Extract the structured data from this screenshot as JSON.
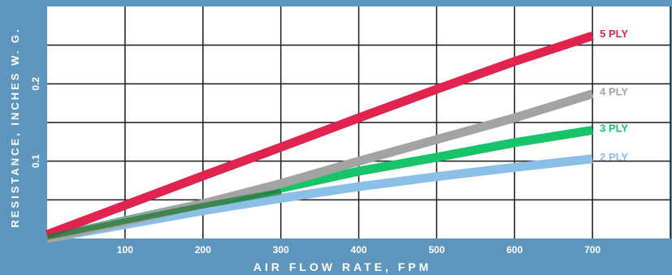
{
  "chart_data": {
    "type": "line",
    "title": "",
    "xlabel": "AIR FLOW RATE, FPM",
    "ylabel": "RESISTANCE, INCHES W. G.",
    "xlim": [
      0,
      800
    ],
    "ylim": [
      0,
      0.3
    ],
    "x_ticks": [
      100,
      200,
      300,
      400,
      500,
      600,
      700
    ],
    "x_tick_labels": [
      "100",
      "200",
      "300",
      "400",
      "500",
      "600",
      "700"
    ],
    "y_ticks": [
      0.1,
      0.2
    ],
    "y_tick_labels": [
      "0.1",
      "0.2"
    ],
    "grid": true,
    "x_grid_step": 100,
    "y_grid_step": 0.05,
    "legend": "inline labels at line ends (right)",
    "series": [
      {
        "name": "5 PLY",
        "color": "#e0234f",
        "x": [
          0,
          100,
          200,
          300,
          400,
          500,
          600,
          700
        ],
        "y": [
          0.005,
          0.043,
          0.081,
          0.118,
          0.156,
          0.193,
          0.229,
          0.262
        ]
      },
      {
        "name": "4 PLY",
        "color": "#a3a3a3",
        "x": [
          0,
          100,
          200,
          300,
          400,
          500,
          600,
          700
        ],
        "y": [
          0,
          0.022,
          0.045,
          0.071,
          0.1,
          0.128,
          0.156,
          0.187
        ]
      },
      {
        "name": "3 PLY",
        "color": "#17c46a",
        "x": [
          0,
          100,
          200,
          300,
          400,
          500,
          600,
          700
        ],
        "y": [
          0,
          0.023,
          0.045,
          0.065,
          0.087,
          0.105,
          0.124,
          0.14
        ]
      },
      {
        "name": "2 PLY",
        "color": "#8bbfe6",
        "x": [
          0,
          100,
          200,
          300,
          400,
          500,
          600,
          700
        ],
        "y": [
          0,
          0.018,
          0.036,
          0.052,
          0.067,
          0.08,
          0.092,
          0.103
        ]
      }
    ]
  },
  "style": {
    "frame_color": "#5e95bd",
    "plot_background": "#ffffff",
    "grid_color": "#1a1a1a",
    "overlap_color": "#1f7a35"
  }
}
